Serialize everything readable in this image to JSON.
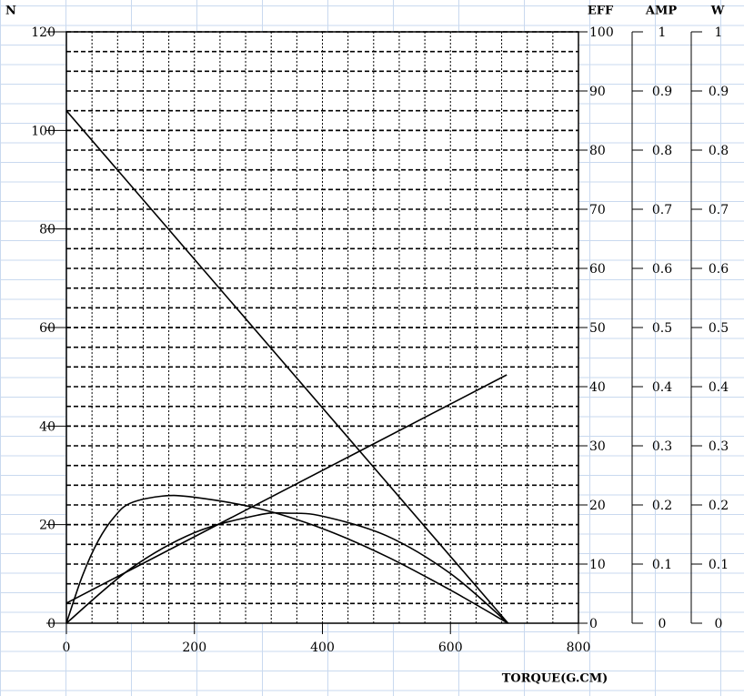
{
  "chart_data": {
    "type": "line",
    "xlabel": "TORQUE(G.CM)",
    "ylabel": "N",
    "y2label": "EFF",
    "y3label": "AMP",
    "y4label": "W",
    "xlim": [
      0,
      800
    ],
    "xticks": [
      0,
      200,
      400,
      600,
      800
    ],
    "ylim": [
      0,
      120
    ],
    "yticks": [
      0,
      20,
      40,
      60,
      80,
      100,
      120
    ],
    "y2lim": [
      0,
      100
    ],
    "y2ticks": [
      0,
      10,
      20,
      30,
      40,
      50,
      60,
      70,
      80,
      90,
      100
    ],
    "y3lim": [
      0,
      1
    ],
    "y3ticks": [
      0,
      0.1,
      0.2,
      0.3,
      0.4,
      0.5,
      0.6,
      0.7,
      0.8,
      0.9,
      1
    ],
    "y4lim": [
      0,
      1
    ],
    "y4ticks": [
      0,
      0.1,
      0.2,
      0.3,
      0.4,
      0.5,
      0.6,
      0.7,
      0.8,
      0.9,
      1
    ],
    "grid": true,
    "color": "#000000",
    "series": [
      {
        "axis": "y",
        "x": [
          0,
          690
        ],
        "values": [
          104,
          0
        ]
      },
      {
        "axis": "y2",
        "x": [
          0,
          25,
          50,
          75,
          100,
          150,
          200,
          300,
          400,
          500,
          600,
          690
        ],
        "values": [
          0,
          8,
          14,
          18,
          20.3,
          21.5,
          21.3,
          19.4,
          16,
          11.3,
          5.6,
          0
        ]
      },
      {
        "axis": "y3",
        "x": [
          0,
          688
        ],
        "values": [
          0.034,
          0.42
        ]
      },
      {
        "axis": "y4",
        "x": [
          0,
          100,
          200,
          300,
          345,
          400,
          500,
          600,
          690
        ],
        "values": [
          0,
          0.092,
          0.153,
          0.183,
          0.186,
          0.181,
          0.148,
          0.084,
          0
        ]
      }
    ]
  }
}
